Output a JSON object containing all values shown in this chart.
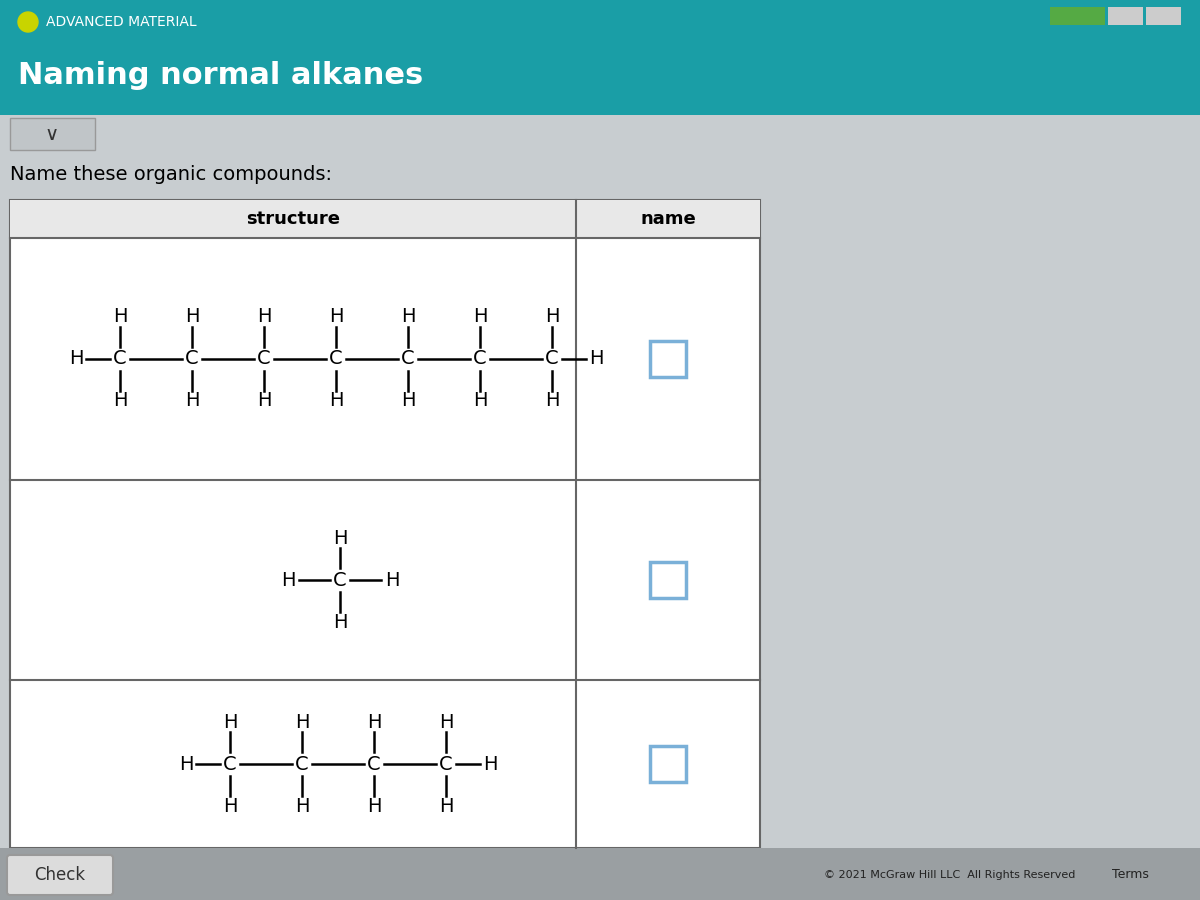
{
  "title": "Naming normal alkanes",
  "subtitle": "ADVANCED MATERIAL",
  "instruction": "Name these organic compounds:",
  "header_bg": "#1a9ea6",
  "page_bg": "#c8cdd0",
  "table_bg": "#f5f5f5",
  "header_text_color": "#ffffff",
  "body_text_color": "#000000",
  "col1_header": "structure",
  "col2_header": "name",
  "circle_color": "#c8d400",
  "footer_text": "© 2021 McGraw Hill LLC  All Rights Reserved",
  "check_button": "Check",
  "terms_text": "Terms",
  "checkbox_color": "#7ab0d8",
  "row_bg": "#f0f0f0",
  "header_row_bg": "#e8e8e8"
}
